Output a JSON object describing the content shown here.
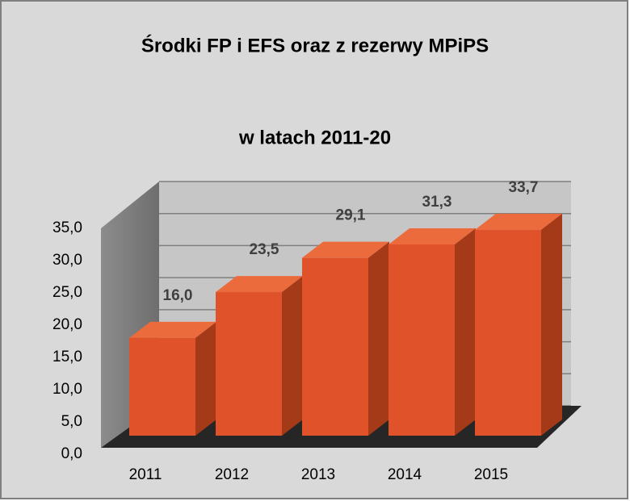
{
  "chart_data": {
    "type": "bar3d",
    "title": "Środki FP i EFS oraz z rezerwy MPiPS",
    "subtitle": "w latach 2011-20",
    "categories": [
      "2011",
      "2012",
      "2013",
      "2014",
      "2015"
    ],
    "values": [
      16.0,
      23.5,
      29.1,
      31.3,
      33.7
    ],
    "value_labels": [
      "16,0",
      "23,5",
      "29,1",
      "31,3",
      "33,7"
    ],
    "color": "#e0522a",
    "ylim": [
      0,
      35
    ],
    "yticks": [
      {
        "value": 0,
        "label": "0,0"
      },
      {
        "value": 5,
        "label": "5,0"
      },
      {
        "value": 10,
        "label": "10,0"
      },
      {
        "value": 15,
        "label": "15,0"
      },
      {
        "value": 20,
        "label": "20,0"
      },
      {
        "value": 25,
        "label": "25,0"
      },
      {
        "value": 30,
        "label": "30,0"
      },
      {
        "value": 35,
        "label": "35,0"
      }
    ],
    "grid": true
  }
}
